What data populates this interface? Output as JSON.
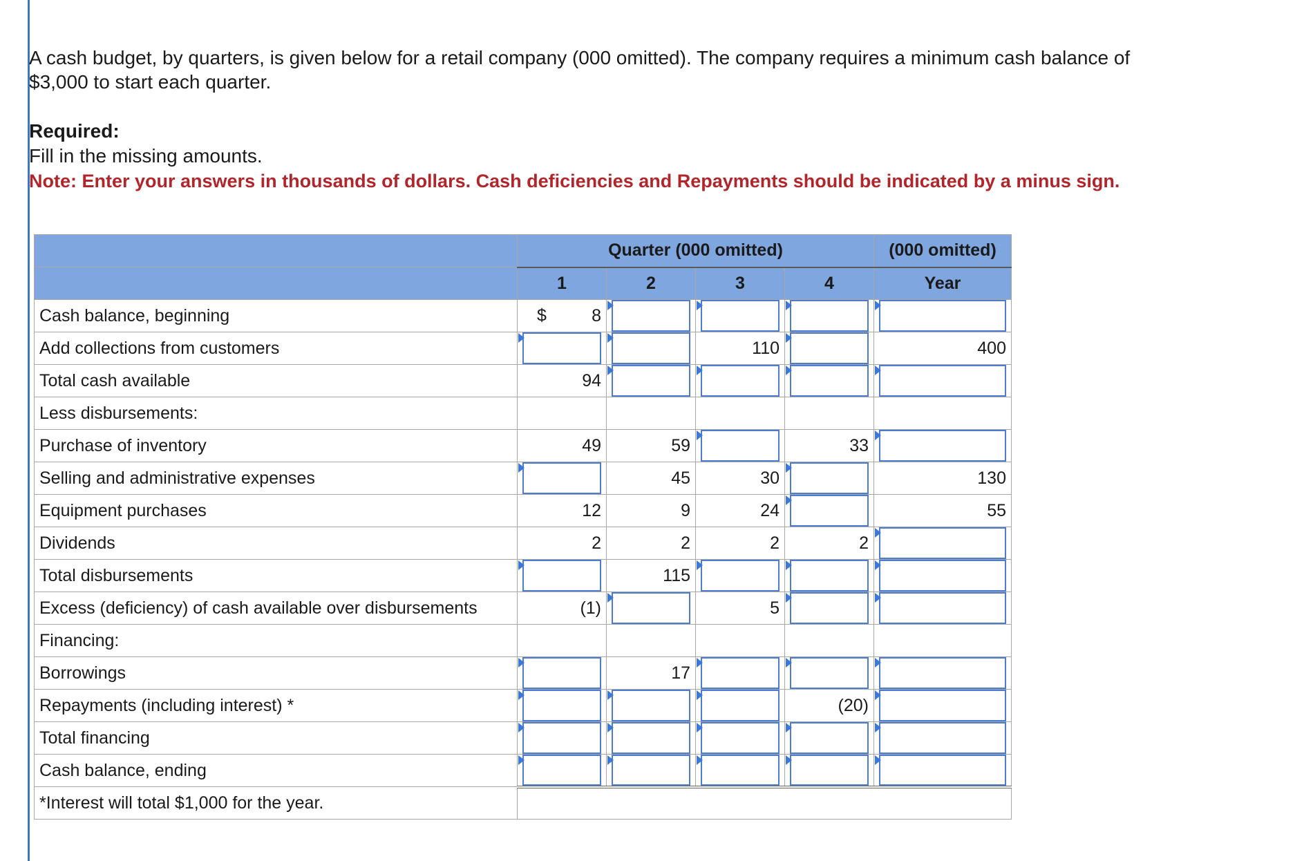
{
  "intro": {
    "line1": "A cash budget, by quarters, is given below for a retail company (000 omitted). The company requires a minimum cash balance of",
    "line2": "$3,000 to start each quarter."
  },
  "required_heading": "Required:",
  "required_text": "Fill in the missing amounts.",
  "note": "Note: Enter your answers in thousands of dollars. Cash deficiencies and Repayments should be indicated by a minus sign.",
  "table": {
    "header_quarter": "Quarter (000 omitted)",
    "header_year_top": "(000 omitted)",
    "col_q1": "1",
    "col_q2": "2",
    "col_q3": "3",
    "col_q4": "4",
    "col_year": "Year",
    "dollar_sign": "$",
    "rows": {
      "cash_begin": {
        "label": "Cash balance, beginning",
        "q1": "8"
      },
      "collections": {
        "label": "Add collections from customers",
        "q3": "110",
        "year": "400"
      },
      "total_available": {
        "label": "Total cash available",
        "q1": "94"
      },
      "less_disb": {
        "label": "Less disbursements:"
      },
      "purchase": {
        "label": "Purchase of inventory",
        "q1": "49",
        "q2": "59",
        "q4": "33"
      },
      "selling": {
        "label": "Selling and administrative expenses",
        "q2": "45",
        "q3": "30",
        "year": "130"
      },
      "equipment": {
        "label": "Equipment purchases",
        "q1": "12",
        "q2": "9",
        "q3": "24",
        "year": "55"
      },
      "dividends": {
        "label": "Dividends",
        "q1": "2",
        "q2": "2",
        "q3": "2",
        "q4": "2"
      },
      "total_disb": {
        "label": "Total disbursements",
        "q2": "115"
      },
      "excess": {
        "label": "Excess (deficiency) of cash available over disbursements",
        "q1": "(1)",
        "q3": "5"
      },
      "financing": {
        "label": "Financing:"
      },
      "borrowings": {
        "label": "Borrowings",
        "q2": "17"
      },
      "repayments": {
        "label": "Repayments (including interest) *",
        "q4": "(20)"
      },
      "total_financing": {
        "label": "Total financing"
      },
      "cash_end": {
        "label": "Cash balance, ending"
      },
      "footnote": {
        "label": "*Interest will total $1,000 for the year."
      }
    }
  }
}
